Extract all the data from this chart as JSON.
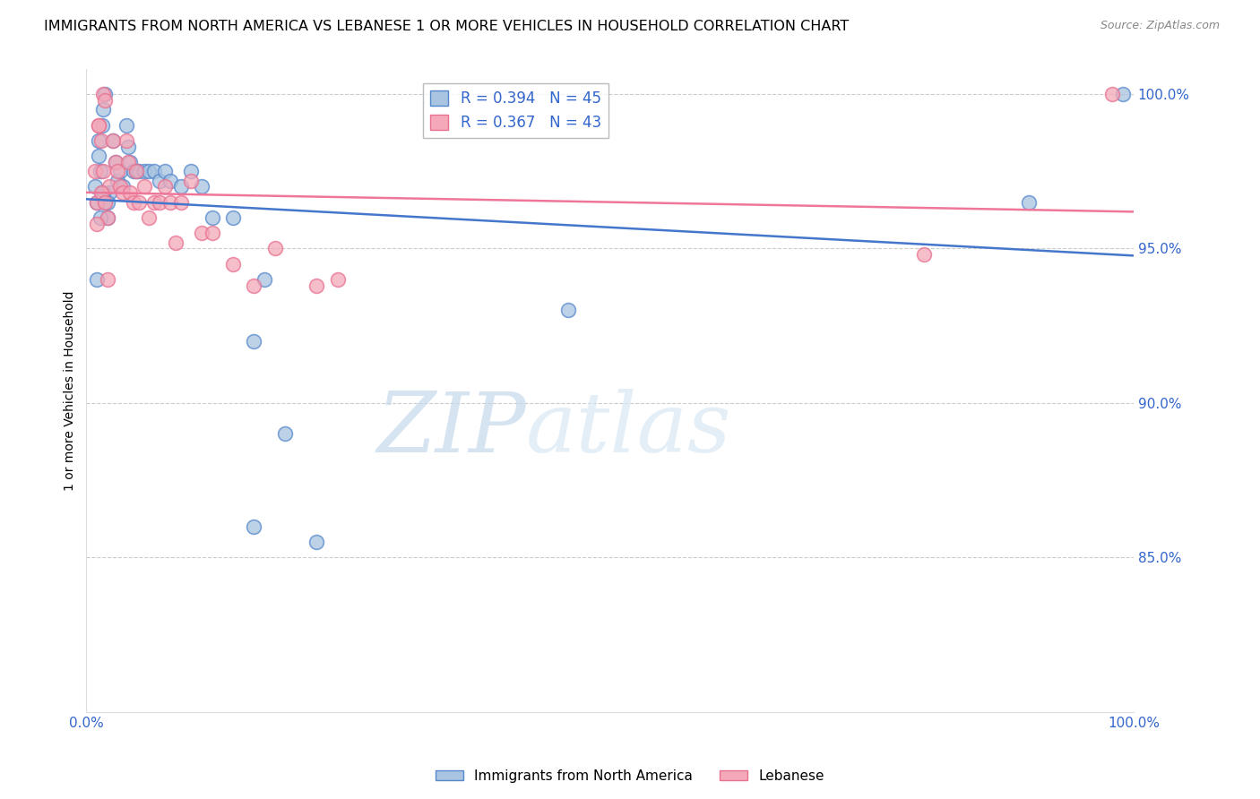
{
  "title": "IMMIGRANTS FROM NORTH AMERICA VS LEBANESE 1 OR MORE VEHICLES IN HOUSEHOLD CORRELATION CHART",
  "source": "Source: ZipAtlas.com",
  "ylabel": "1 or more Vehicles in Household",
  "watermark_zip": "ZIP",
  "watermark_atlas": "atlas",
  "blue_label": "Immigrants from North America",
  "pink_label": "Lebanese",
  "blue_R": 0.394,
  "blue_N": 45,
  "pink_R": 0.367,
  "pink_N": 43,
  "blue_color": "#A8C4E0",
  "pink_color": "#F4A8B8",
  "blue_edge_color": "#5588CC",
  "pink_edge_color": "#E87090",
  "blue_line_color": "#4477CC",
  "pink_line_color": "#EE7799",
  "xlim": [
    0.0,
    1.0
  ],
  "ylim": [
    0.8,
    1.008
  ],
  "ytick_vals": [
    0.85,
    0.9,
    0.95,
    1.0
  ],
  "ytick_labels": [
    "85.0%",
    "90.0%",
    "95.0%",
    "100.0%"
  ],
  "xtick_vals": [
    0.0,
    0.1,
    0.2,
    0.3,
    0.4,
    0.5,
    0.6,
    0.7,
    0.8,
    0.9,
    1.0
  ],
  "xtick_labels": [
    "0.0%",
    "",
    "",
    "",
    "",
    "",
    "",
    "",
    "",
    "",
    "100.0%"
  ],
  "blue_x": [
    0.008,
    0.01,
    0.012,
    0.013,
    0.015,
    0.016,
    0.018,
    0.02,
    0.022,
    0.025,
    0.028,
    0.03,
    0.032,
    0.035,
    0.038,
    0.04,
    0.042,
    0.045,
    0.048,
    0.05,
    0.055,
    0.06,
    0.065,
    0.07,
    0.075,
    0.08,
    0.09,
    0.1,
    0.11,
    0.12,
    0.14,
    0.16,
    0.17,
    0.19,
    0.01,
    0.012,
    0.013,
    0.016,
    0.018,
    0.02,
    0.16,
    0.22,
    0.46,
    0.9,
    0.99
  ],
  "blue_y": [
    0.97,
    0.965,
    0.98,
    0.975,
    0.99,
    0.995,
    1.0,
    0.96,
    0.968,
    0.985,
    0.978,
    0.972,
    0.975,
    0.97,
    0.99,
    0.983,
    0.978,
    0.975,
    0.975,
    0.975,
    0.975,
    0.975,
    0.975,
    0.972,
    0.975,
    0.972,
    0.97,
    0.975,
    0.97,
    0.96,
    0.96,
    0.92,
    0.94,
    0.89,
    0.94,
    0.985,
    0.96,
    0.968,
    0.965,
    0.965,
    0.86,
    0.855,
    0.93,
    0.965,
    1.0
  ],
  "pink_x": [
    0.008,
    0.01,
    0.012,
    0.014,
    0.016,
    0.018,
    0.02,
    0.022,
    0.025,
    0.028,
    0.03,
    0.032,
    0.035,
    0.038,
    0.04,
    0.042,
    0.045,
    0.048,
    0.05,
    0.055,
    0.06,
    0.065,
    0.07,
    0.075,
    0.08,
    0.09,
    0.1,
    0.11,
    0.12,
    0.14,
    0.16,
    0.18,
    0.22,
    0.01,
    0.012,
    0.014,
    0.016,
    0.018,
    0.02,
    0.085,
    0.24,
    0.8,
    0.98
  ],
  "pink_y": [
    0.975,
    0.965,
    0.99,
    0.985,
    1.0,
    0.998,
    0.96,
    0.97,
    0.985,
    0.978,
    0.975,
    0.97,
    0.968,
    0.985,
    0.978,
    0.968,
    0.965,
    0.975,
    0.965,
    0.97,
    0.96,
    0.965,
    0.965,
    0.97,
    0.965,
    0.965,
    0.972,
    0.955,
    0.955,
    0.945,
    0.938,
    0.95,
    0.938,
    0.958,
    0.99,
    0.968,
    0.975,
    0.965,
    0.94,
    0.952,
    0.94,
    0.948,
    1.0
  ],
  "background_color": "#ffffff",
  "grid_color": "#cccccc",
  "title_fontsize": 11.5,
  "source_fontsize": 9,
  "tick_fontsize": 11,
  "legend_fontsize": 12
}
